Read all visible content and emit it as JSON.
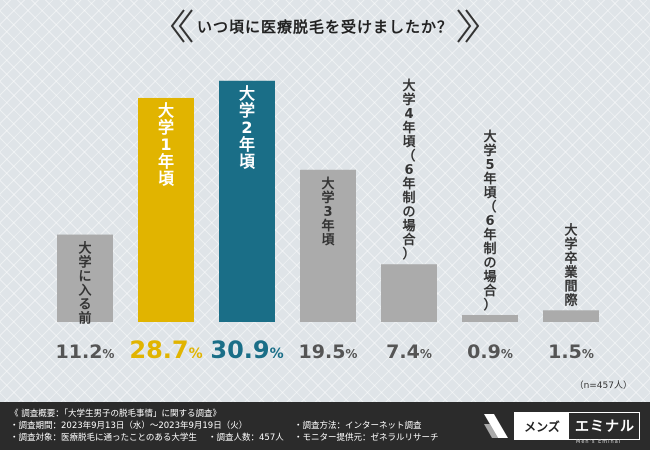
{
  "title": "いつ頃に医療脱毛を受けましたか？",
  "chart_data": {
    "type": "bar",
    "categories": [
      "大学に入る前",
      "大学1年頃",
      "大学2年頃",
      "大学3年頃",
      "大学4年頃（6年制の場合）",
      "大学5年頃（6年制の場合）",
      "大学卒業間際"
    ],
    "values": [
      11.2,
      28.7,
      30.9,
      19.5,
      7.4,
      0.9,
      1.5
    ],
    "value_labels": [
      "11.2",
      "28.7",
      "30.9",
      "19.5",
      "7.4",
      "0.9",
      "1.5"
    ],
    "unit": "%",
    "bar_colors": [
      "#ababab",
      "#e1b400",
      "#1a6e87",
      "#ababab",
      "#ababab",
      "#ababab",
      "#ababab"
    ],
    "value_colors": [
      "#555555",
      "#e1b400",
      "#1a6e87",
      "#555555",
      "#555555",
      "#555555",
      "#555555"
    ],
    "ylim": [
      0,
      31
    ]
  },
  "note": "（n=457人）",
  "footer": {
    "survey_title": "《 調査概要：「大学生男子の脱毛事情」に関する調査》",
    "period": "・調査期間：2023年9月13日（水）～2023年9月19日（火）",
    "target": "・調査対象：医療脱毛に通ったことのある大学生",
    "count": "・調査人数：457人",
    "method": "・調査方法：インターネット調査",
    "provider": "・モニター提供元：ゼネラルリサーチ"
  },
  "logo": {
    "left": "メンズ",
    "right": "エミナル",
    "sub": "Men's Eminal"
  }
}
